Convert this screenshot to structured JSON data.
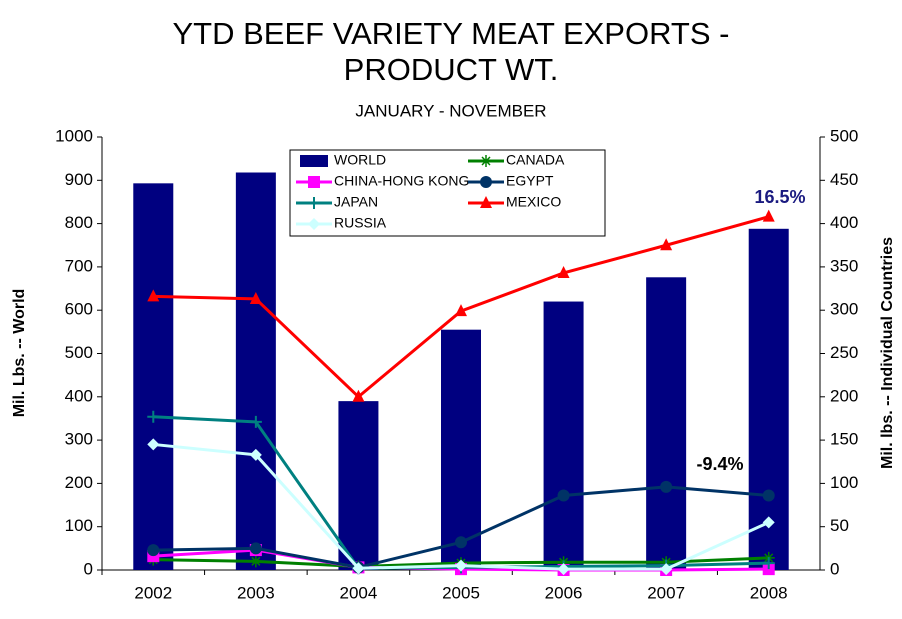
{
  "chart_data": {
    "type": "bar",
    "title": [
      "YTD BEEF VARIETY MEAT EXPORTS -",
      "PRODUCT WT."
    ],
    "subtitle": "JANUARY - NOVEMBER",
    "y_label": "Mil. Lbs. -- World",
    "y2_label": "Mil. lbs. -- Individual Countries",
    "categories": [
      "2002",
      "2003",
      "2004",
      "2005",
      "2006",
      "2007",
      "2008"
    ],
    "series": [
      {
        "name": "WORLD",
        "type": "bar",
        "color": "#000080",
        "values": [
          893,
          918,
          390,
          555,
          620,
          676,
          788
        ]
      },
      {
        "name": "CANADA",
        "type": "line",
        "axis": "y2",
        "marker": "star",
        "color": "#008000",
        "values": [
          12,
          10,
          4,
          8,
          9,
          9,
          14
        ]
      },
      {
        "name": "CHINA-HONG KONG",
        "type": "line",
        "axis": "y2",
        "marker": "square",
        "color": "#ff00ff",
        "values": [
          16,
          23,
          3,
          1,
          0,
          0,
          1
        ]
      },
      {
        "name": "EGYPT",
        "type": "line",
        "axis": "y2",
        "marker": "circle",
        "color": "#003366",
        "values": [
          23,
          25,
          3,
          32,
          86,
          96,
          86
        ]
      },
      {
        "name": "JAPAN",
        "type": "line",
        "axis": "y2",
        "marker": "plus",
        "color": "#008080",
        "values": [
          177,
          171,
          2,
          3,
          4,
          5,
          8
        ]
      },
      {
        "name": "MEXICO",
        "type": "line",
        "axis": "y2",
        "marker": "triangle",
        "color": "#ff0000",
        "values": [
          316,
          313,
          200,
          299,
          343,
          375,
          408
        ]
      },
      {
        "name": "RUSSIA",
        "type": "line",
        "axis": "y2",
        "marker": "diamond",
        "color": "#ccffff",
        "values": [
          145,
          133,
          2,
          5,
          1,
          1,
          55
        ]
      }
    ],
    "annotations": [
      {
        "text": "16.5%",
        "color": "#1a1a80"
      },
      {
        "text": "-9.4%",
        "color": "#000000"
      }
    ],
    "ylim": [
      0,
      1000
    ],
    "yticks": [
      0,
      100,
      200,
      300,
      400,
      500,
      600,
      700,
      800,
      900,
      1000
    ],
    "y2lim": [
      0,
      500
    ],
    "y2ticks": [
      0,
      50,
      100,
      150,
      200,
      250,
      300,
      350,
      400,
      450,
      500
    ],
    "grid": false
  }
}
